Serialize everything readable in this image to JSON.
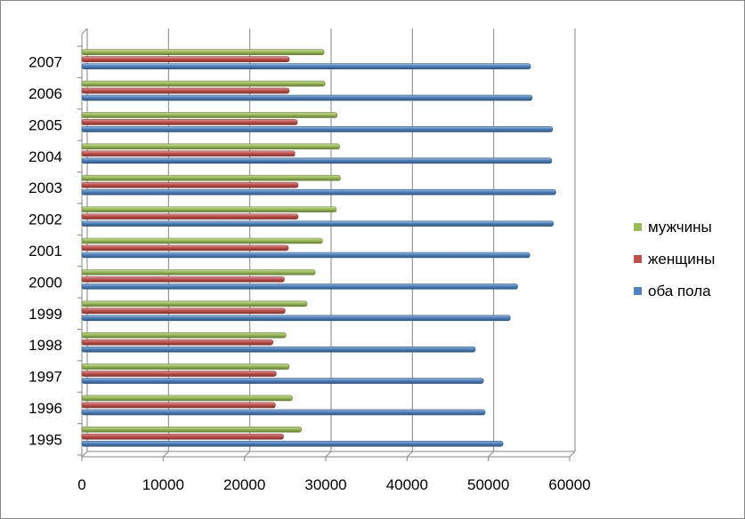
{
  "chart_data": {
    "type": "bar",
    "orientation": "horizontal",
    "categories": [
      "1995",
      "1996",
      "1997",
      "1998",
      "1999",
      "2000",
      "2001",
      "2002",
      "2003",
      "2004",
      "2005",
      "2006",
      "2007"
    ],
    "series": [
      {
        "name": "мужчины",
        "color": "#9bbb59",
        "values": [
          27000,
          25900,
          25500,
          25100,
          27700,
          28700,
          29600,
          31300,
          31800,
          31700,
          31400,
          29900,
          29800
        ]
      },
      {
        "name": "женщины",
        "color": "#c0504d",
        "values": [
          24800,
          23800,
          23900,
          23500,
          25000,
          24900,
          25400,
          26600,
          26600,
          26200,
          26500,
          25500,
          25500
        ]
      },
      {
        "name": "оба пола",
        "color": "#4f81bd",
        "values": [
          51800,
          49600,
          49400,
          48400,
          52700,
          53600,
          55100,
          58000,
          58300,
          57800,
          57900,
          55400,
          55200
        ]
      }
    ],
    "x_ticks": [
      "0",
      "10000",
      "20000",
      "30000",
      "40000",
      "50000",
      "60000"
    ],
    "xlim": [
      0,
      60000
    ],
    "grid": "vertical",
    "legend_position": "right",
    "legend_order": [
      "мужчины",
      "женщины",
      "оба пола"
    ]
  }
}
